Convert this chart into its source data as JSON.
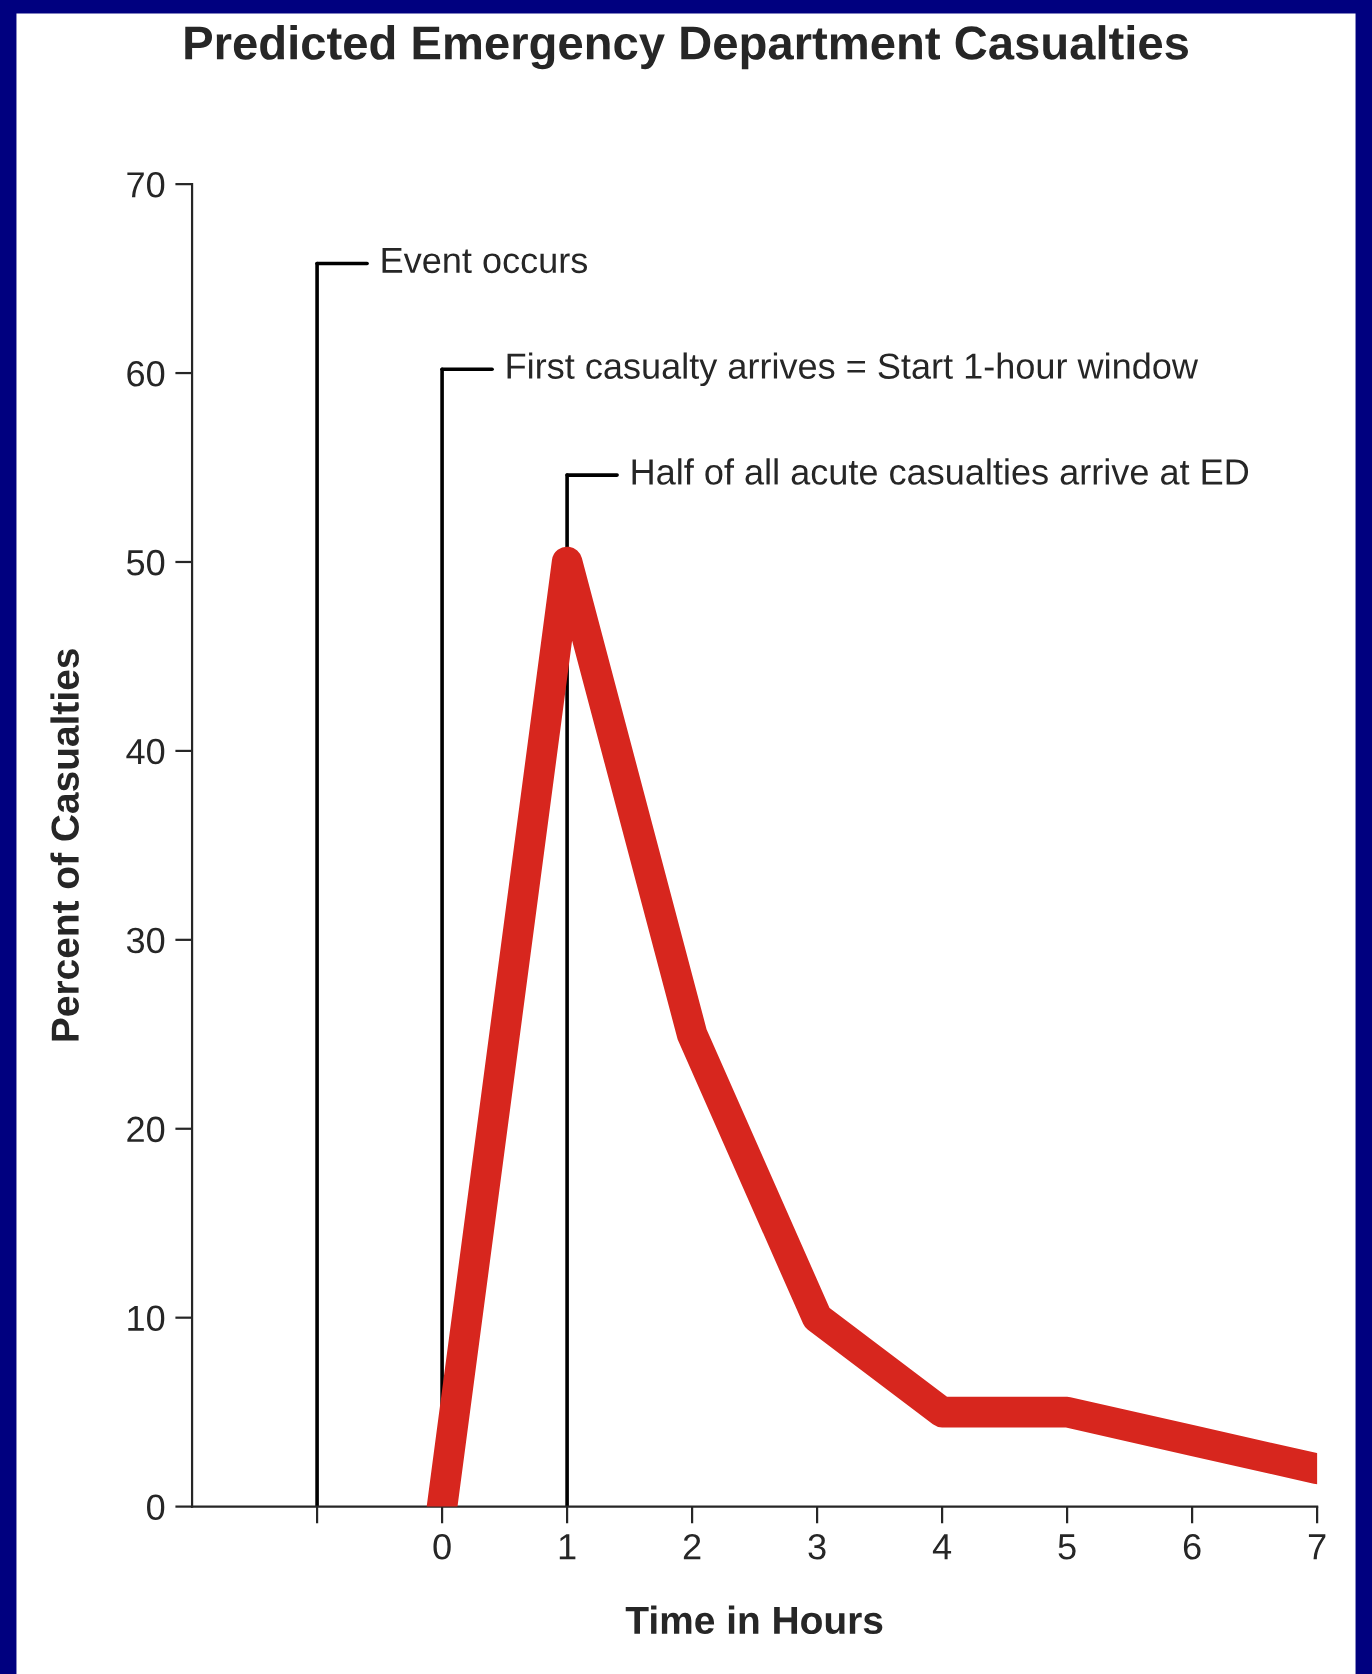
{
  "chart_data": {
    "type": "line",
    "title": "Predicted Emergency Department Casualties",
    "xlabel": "Time in Hours",
    "ylabel": "Percent of Casualties",
    "x": [
      0,
      1,
      2,
      3,
      4,
      5,
      6,
      7
    ],
    "series": [
      {
        "color": "#d7261e",
        "values": [
          0,
          50,
          25,
          10,
          5,
          5,
          3.5,
          2
        ]
      }
    ],
    "xlim": [
      -2,
      7
    ],
    "xticks": [
      {
        "value": -1,
        "label": null
      },
      0,
      1,
      2,
      3,
      4,
      5,
      6,
      7
    ],
    "ylim": [
      0,
      70
    ],
    "yticks": [
      0,
      10,
      20,
      30,
      40,
      50,
      60,
      70
    ],
    "ref_lines": [
      {
        "axis": "x",
        "value": -1,
        "label": "Event occurs"
      },
      {
        "axis": "x",
        "value": 0,
        "label": "First casualty arrives = Start 1-hour window"
      },
      {
        "axis": "x",
        "value": 1,
        "label": "Half of all acute casualties arrive at ED"
      }
    ],
    "grid": false,
    "legend": false,
    "marker": "none",
    "line_style": "solid"
  }
}
